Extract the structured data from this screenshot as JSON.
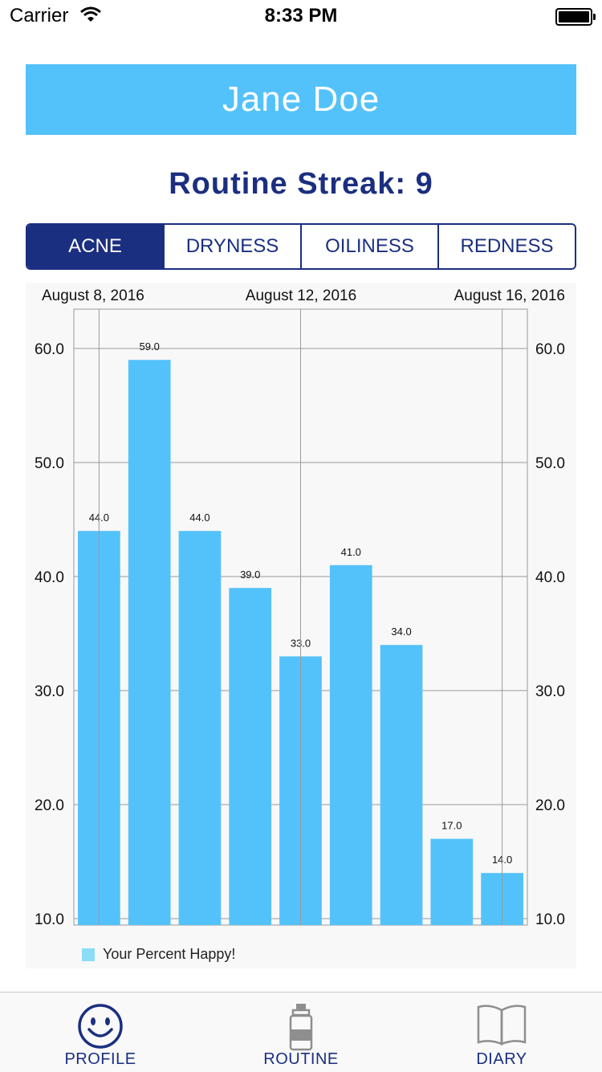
{
  "status_bar": {
    "carrier": "Carrier",
    "time": "8:33 PM"
  },
  "header": {
    "name": "Jane Doe",
    "streak": "Routine Streak: 9"
  },
  "segments": [
    {
      "label": "ACNE",
      "active": true
    },
    {
      "label": "DRYNESS",
      "active": false
    },
    {
      "label": "OILINESS",
      "active": false
    },
    {
      "label": "REDNESS",
      "active": false
    }
  ],
  "chart_data": {
    "type": "bar",
    "top_axis_labels": [
      "August 8, 2016",
      "August 12, 2016",
      "August 16, 2016"
    ],
    "categories": [
      "August 8, 2016",
      "",
      "",
      "",
      "August 12, 2016",
      "",
      "",
      "",
      "August 16, 2016"
    ],
    "values": [
      44.0,
      59.0,
      44.0,
      39.0,
      33.0,
      41.0,
      34.0,
      17.0,
      14.0
    ],
    "value_labels": [
      "44.0",
      "59.0",
      "44.0",
      "39.0",
      "33.0",
      "41.0",
      "34.0",
      "17.0",
      "14.0"
    ],
    "y_ticks": [
      "60.0",
      "50.0",
      "40.0",
      "30.0",
      "20.0",
      "10.0"
    ],
    "ylim": [
      10,
      60
    ],
    "legend": "Your Percent Happy!",
    "bar_color": "#54c2fa",
    "legend_color": "#8bdcf7",
    "grid": true
  },
  "tabs": [
    {
      "label": "PROFILE",
      "icon": "smiley-icon",
      "active": true
    },
    {
      "label": "ROUTINE",
      "icon": "bottle-icon",
      "active": false
    },
    {
      "label": "DIARY",
      "icon": "book-icon",
      "active": false
    }
  ]
}
